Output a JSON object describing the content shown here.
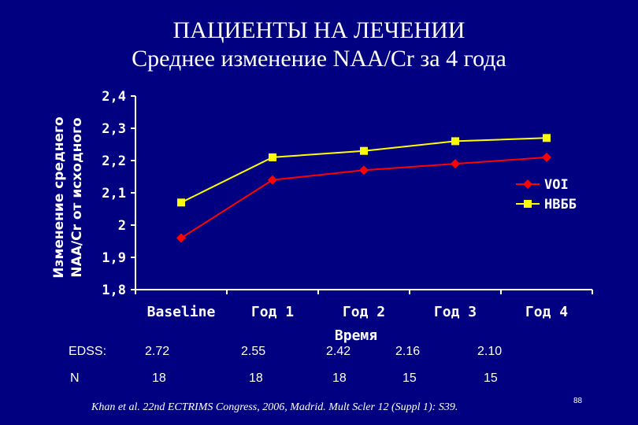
{
  "slide": {
    "title_line1": "ПАЦИЕНТЫ НА ЛЕЧЕНИИ",
    "title_line2": "Среднее изменение NAA/Cr за 4 года",
    "citation": "Khan et al. 22nd ECTRIMS Congress, 2006, Madrid. Mult Scler 12 (Suppl 1): S39.",
    "page_number": "88"
  },
  "table": {
    "edss_label": "EDSS:",
    "edss_values": [
      "2.72",
      "2.55",
      "2.42",
      "2.16",
      "2.10"
    ],
    "n_label": "N",
    "n_values": [
      "18",
      "18",
      "18",
      "15",
      "15"
    ]
  },
  "colors": {
    "background": "#000080",
    "voi": "#ff0000",
    "hbbb": "#ffff00",
    "text": "#ffffff"
  },
  "chart_data": {
    "type": "line",
    "title": "",
    "xlabel": "Время",
    "ylabel_line1": "Изменение среднего",
    "ylabel_line2": "NAA/Cr от исходного",
    "categories": [
      "Baseline",
      "Год 1",
      "Год 2",
      "Год 3",
      "Год 4"
    ],
    "ylim": [
      1.8,
      2.4
    ],
    "yticks": [
      1.8,
      1.9,
      2.0,
      2.1,
      2.2,
      2.3,
      2.4
    ],
    "ytick_labels": [
      "1,8",
      "1,9",
      "2",
      "2,1",
      "2,2",
      "2,3",
      "2,4"
    ],
    "grid": false,
    "legend_position": "right",
    "series": [
      {
        "name": "VOI",
        "color": "#ff0000",
        "marker": "diamond",
        "values": [
          1.96,
          2.14,
          2.17,
          2.19,
          2.21
        ]
      },
      {
        "name": "НВББ",
        "color": "#ffff00",
        "marker": "square",
        "values": [
          2.07,
          2.21,
          2.23,
          2.26,
          2.27
        ]
      }
    ]
  }
}
